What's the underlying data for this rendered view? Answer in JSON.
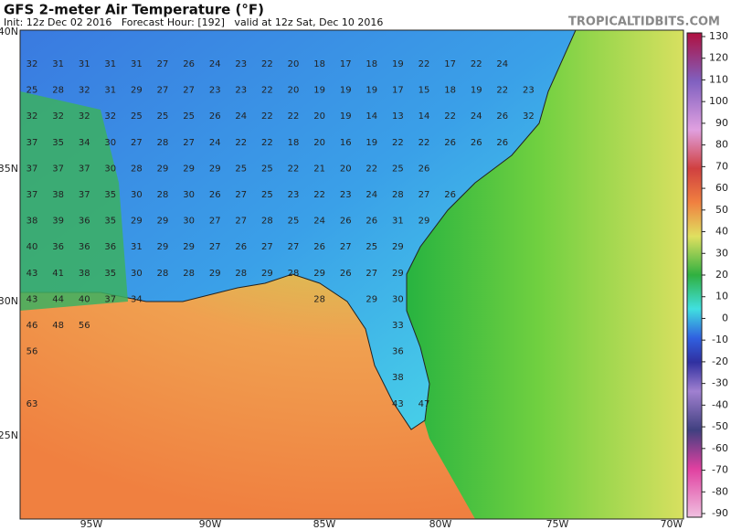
{
  "header": {
    "title": "GFS 2-meter Air Temperature (°F)",
    "subtitle": "Init: 12z Dec 02 2016   Forecast Hour: [192]   valid at 12z Sat, Dec 10 2016",
    "brand": "TROPICALTIDBITS.COM"
  },
  "map": {
    "lat_labels": [
      "40N",
      "35N",
      "30N",
      "25N"
    ],
    "lon_labels": [
      "95W",
      "90W",
      "85W",
      "80W",
      "75W",
      "70W"
    ],
    "colorbar_ticks": [
      130,
      120,
      110,
      100,
      90,
      80,
      70,
      60,
      50,
      40,
      30,
      20,
      10,
      0,
      -10,
      -20,
      -30,
      -40,
      -50,
      -60,
      -70,
      -80,
      -90
    ],
    "grid_values": [
      [
        32,
        31,
        31,
        31,
        31,
        27,
        26,
        24,
        23,
        22,
        20,
        18,
        17,
        18,
        19,
        22,
        17,
        22,
        24
      ],
      [
        25,
        28,
        32,
        31,
        29,
        27,
        27,
        23,
        23,
        22,
        20,
        19,
        19,
        19,
        17,
        15,
        18,
        19,
        22,
        23
      ],
      [
        32,
        32,
        32,
        32,
        25,
        25,
        25,
        26,
        24,
        22,
        22,
        20,
        19,
        14,
        13,
        14,
        22,
        24,
        26,
        32
      ],
      [
        37,
        35,
        34,
        30,
        27,
        28,
        27,
        24,
        22,
        22,
        18,
        20,
        16,
        19,
        22,
        22,
        26,
        26,
        26
      ],
      [
        37,
        37,
        37,
        30,
        28,
        29,
        29,
        29,
        25,
        25,
        22,
        21,
        20,
        22,
        25,
        26
      ],
      [
        37,
        38,
        37,
        35,
        30,
        28,
        30,
        26,
        27,
        25,
        23,
        22,
        23,
        24,
        28,
        27,
        26
      ],
      [
        38,
        39,
        36,
        35,
        29,
        29,
        30,
        27,
        27,
        28,
        25,
        24,
        26,
        26,
        31,
        29
      ],
      [
        40,
        36,
        36,
        36,
        31,
        29,
        29,
        27,
        26,
        27,
        27,
        26,
        27,
        25,
        29
      ],
      [
        43,
        41,
        38,
        35,
        30,
        28,
        28,
        29,
        28,
        29,
        28,
        29,
        26,
        27,
        29
      ],
      [
        43,
        44,
        40,
        37,
        34,
        null,
        null,
        null,
        null,
        null,
        null,
        28,
        null,
        29,
        30
      ],
      [
        46,
        48,
        56,
        null,
        null,
        null,
        null,
        null,
        null,
        null,
        null,
        null,
        null,
        null,
        33
      ],
      [
        56,
        null,
        null,
        null,
        null,
        null,
        null,
        null,
        null,
        null,
        null,
        null,
        null,
        null,
        36
      ],
      [
        null,
        null,
        null,
        null,
        null,
        null,
        null,
        null,
        null,
        null,
        null,
        null,
        null,
        null,
        38
      ],
      [
        63,
        null,
        null,
        null,
        null,
        null,
        null,
        null,
        null,
        null,
        null,
        null,
        null,
        null,
        43,
        47
      ]
    ]
  }
}
